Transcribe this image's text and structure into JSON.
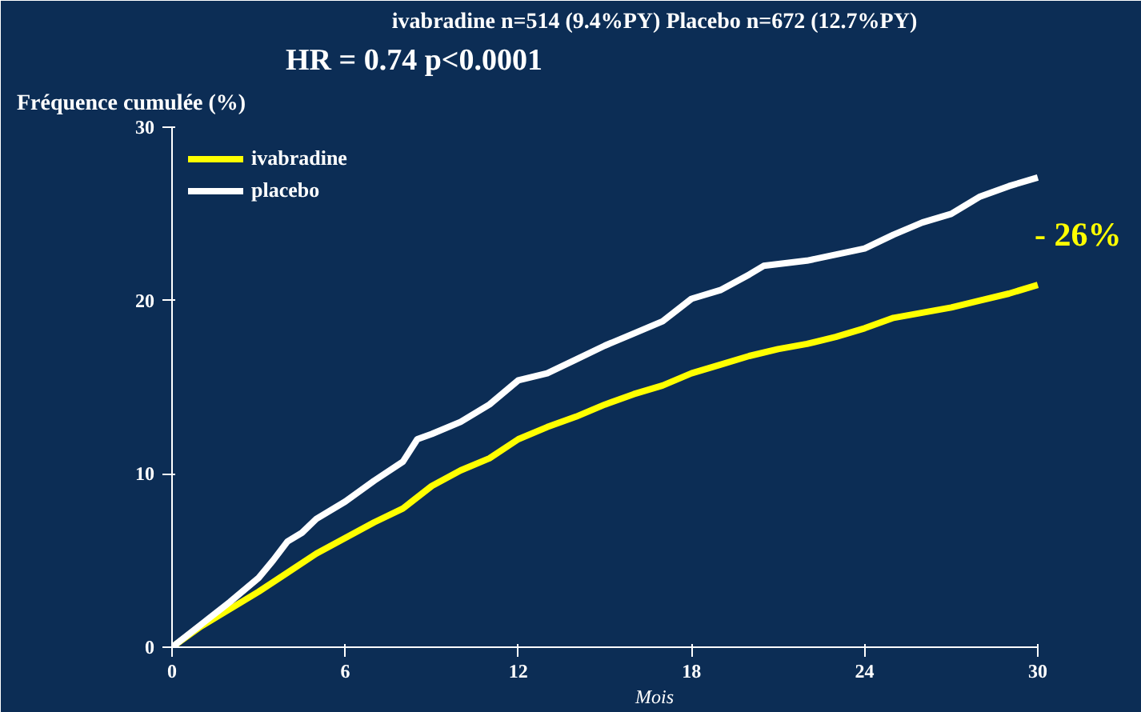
{
  "chart_data": {
    "type": "line",
    "title": "ivabradine n=514 (9.4%PY) Placebo n=672 (12.7%PY)",
    "subtitle": "HR = 0.74   p<0.0001",
    "xlabel": "Mois",
    "ylabel": "Fréquence cumulée (%)",
    "annotations": [
      "- 26%"
    ],
    "xlim": [
      0,
      30
    ],
    "ylim": [
      0,
      30
    ],
    "xticks": [
      0,
      6,
      12,
      18,
      24,
      30
    ],
    "yticks": [
      0,
      10,
      20,
      30
    ],
    "grid": false,
    "legend": "top left",
    "line_style": "solid",
    "marker": "none",
    "series": [
      {
        "name": "ivabradine",
        "color": "#ffff00",
        "x": [
          0,
          1,
          2,
          3,
          4,
          5,
          6,
          7,
          8,
          9,
          10,
          11,
          12,
          13,
          14,
          15,
          16,
          17,
          18,
          19,
          20,
          21,
          22,
          23,
          24,
          25,
          26,
          27,
          28,
          29,
          30
        ],
        "values": [
          0,
          1.2,
          2.2,
          3.2,
          4.3,
          5.4,
          6.3,
          7.2,
          8.0,
          9.3,
          10.2,
          10.9,
          12.0,
          12.7,
          13.3,
          14.0,
          14.6,
          15.1,
          15.8,
          16.3,
          16.8,
          17.2,
          17.5,
          17.9,
          18.4,
          19.0,
          19.3,
          19.6,
          20.0,
          20.4,
          20.9
        ]
      },
      {
        "name": "placebo",
        "color": "#ffffff",
        "x": [
          0,
          1,
          2,
          3,
          3.5,
          4,
          4.5,
          5,
          6,
          7,
          8,
          8.5,
          9,
          10,
          11,
          12,
          13,
          14,
          15,
          16,
          17,
          18,
          19,
          20,
          20.5,
          22,
          24,
          25,
          26,
          27,
          28,
          29,
          30
        ],
        "values": [
          0,
          1.3,
          2.6,
          4.0,
          5.0,
          6.1,
          6.6,
          7.4,
          8.4,
          9.6,
          10.7,
          12.0,
          12.3,
          13.0,
          14.0,
          15.4,
          15.8,
          16.6,
          17.4,
          18.1,
          18.8,
          20.1,
          20.6,
          21.5,
          22.0,
          22.3,
          23.0,
          23.8,
          24.5,
          25.0,
          26.0,
          26.6,
          27.1
        ]
      }
    ]
  }
}
